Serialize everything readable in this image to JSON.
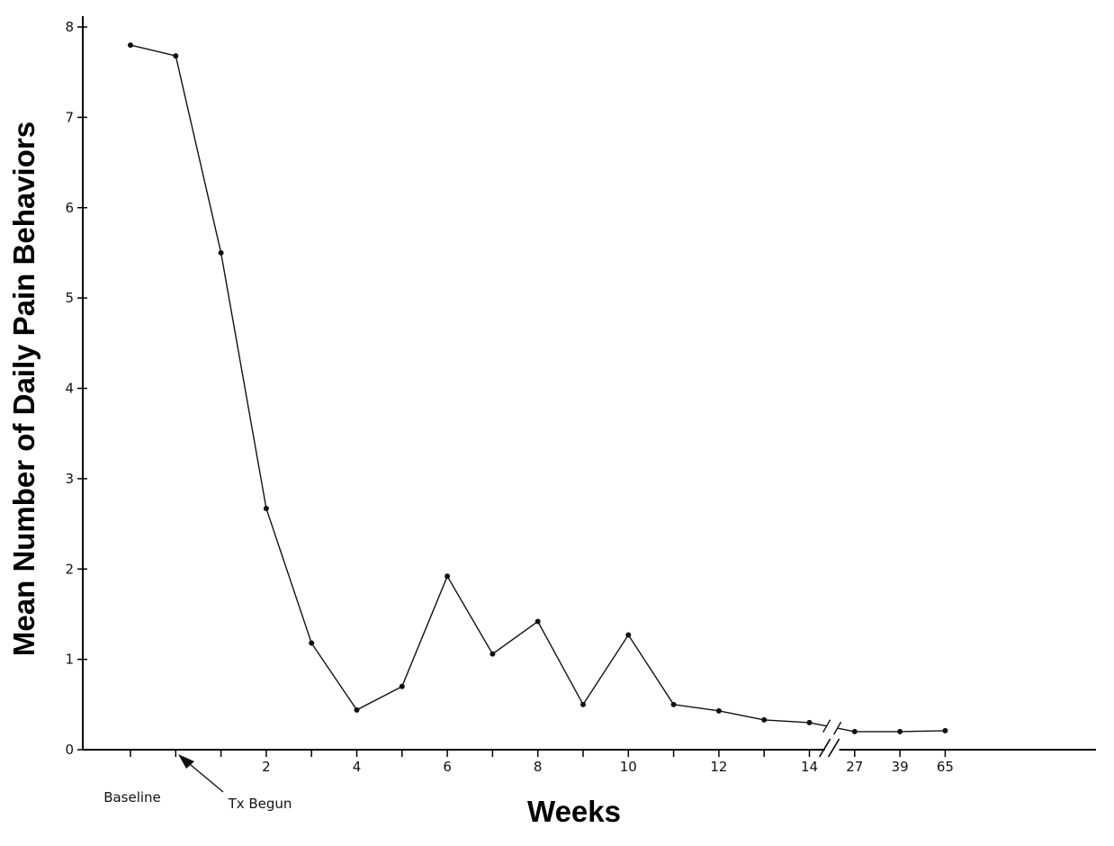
{
  "chart_data": {
    "type": "line",
    "title": "",
    "xlabel": "Weeks",
    "ylabel": "Mean Number of Daily Pain Behaviors",
    "ylim": [
      0,
      8
    ],
    "yticks": [
      0,
      1,
      2,
      3,
      4,
      5,
      6,
      7,
      8
    ],
    "grid": false,
    "x": [
      "Baseline",
      "Tx Begun",
      "1",
      "2",
      "3",
      "4",
      "5",
      "6",
      "7",
      "8",
      "9",
      "10",
      "11",
      "12",
      "13",
      "14",
      "27",
      "39",
      "65"
    ],
    "x_tick_labels": [
      "2",
      "4",
      "6",
      "8",
      "10",
      "12",
      "14",
      "27",
      "39",
      "65"
    ],
    "axis_break_between": [
      "14",
      "27"
    ],
    "series": [
      {
        "name": "",
        "values": [
          7.8,
          7.68,
          5.5,
          2.67,
          1.18,
          0.44,
          0.7,
          1.92,
          1.06,
          1.42,
          0.5,
          1.27,
          0.5,
          0.43,
          0.33,
          0.3,
          0.2,
          0.2,
          0.21
        ]
      }
    ],
    "annotations": {
      "baseline": "Baseline",
      "treatment_start": "Tx Begun"
    }
  }
}
